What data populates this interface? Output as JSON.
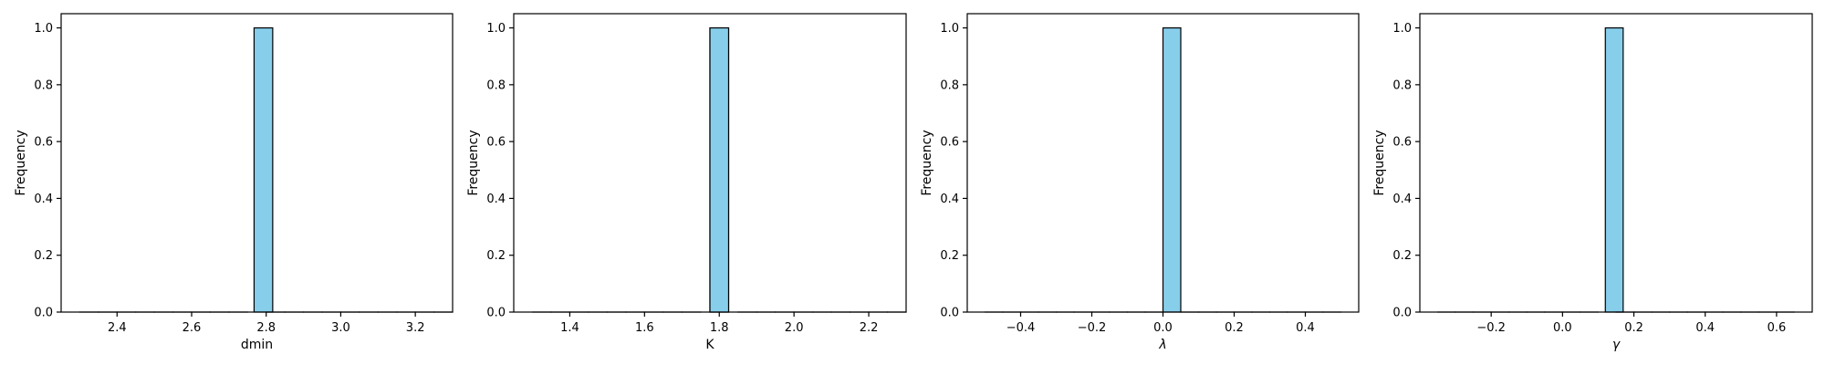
{
  "chart_data": [
    {
      "type": "bar",
      "xlabel": "dmin",
      "ylabel": "Frequency",
      "xlim": [
        2.25,
        3.3
      ],
      "ylim": [
        0,
        1.05
      ],
      "xticks": [
        "2.4",
        "2.6",
        "2.8",
        "3.0",
        "3.2"
      ],
      "yticks": [
        "0.0",
        "0.2",
        "0.4",
        "0.6",
        "0.8",
        "1.0"
      ],
      "bins": {
        "start": 2.3,
        "end": 3.3,
        "count": 20
      },
      "bars": [
        {
          "x0": 2.7675,
          "x1": 2.8175,
          "value": 1
        }
      ],
      "bar_color": "#87CEEB"
    },
    {
      "type": "bar",
      "xlabel": "K",
      "ylabel": "Frequency",
      "xlim": [
        1.25,
        2.3
      ],
      "ylim": [
        0,
        1.05
      ],
      "xticks": [
        "1.4",
        "1.6",
        "1.8",
        "2.0",
        "2.2"
      ],
      "yticks": [
        "0.0",
        "0.2",
        "0.4",
        "0.6",
        "0.8",
        "1.0"
      ],
      "bins": {
        "start": 1.3,
        "end": 2.3,
        "count": 20
      },
      "bars": [
        {
          "x0": 1.775,
          "x1": 1.825,
          "value": 1
        }
      ],
      "bar_color": "#87CEEB"
    },
    {
      "type": "bar",
      "xlabel": "λ",
      "ylabel": "Frequency",
      "xlim": [
        -0.55,
        0.55
      ],
      "ylim": [
        0,
        1.05
      ],
      "xticks": [
        "−0.4",
        "−0.2",
        "0.0",
        "0.2",
        "0.4"
      ],
      "yticks": [
        "0.0",
        "0.2",
        "0.4",
        "0.6",
        "0.8",
        "1.0"
      ],
      "bins": {
        "start": -0.5,
        "end": 0.5,
        "count": 20
      },
      "bars": [
        {
          "x0": 0.0,
          "x1": 0.05,
          "value": 1
        }
      ],
      "bar_color": "#87CEEB"
    },
    {
      "type": "bar",
      "xlabel": "γ",
      "ylabel": "Frequency",
      "xlim": [
        -0.4,
        0.7
      ],
      "ylim": [
        0,
        1.05
      ],
      "xticks": [
        "−0.2",
        "0.0",
        "0.2",
        "0.4",
        "0.6"
      ],
      "yticks": [
        "0.0",
        "0.2",
        "0.4",
        "0.6",
        "0.8",
        "1.0"
      ],
      "bins": {
        "start": -0.35,
        "end": 0.65,
        "count": 20
      },
      "bars": [
        {
          "x0": 0.12,
          "x1": 0.17,
          "value": 1
        }
      ],
      "bar_color": "#87CEEB"
    }
  ]
}
